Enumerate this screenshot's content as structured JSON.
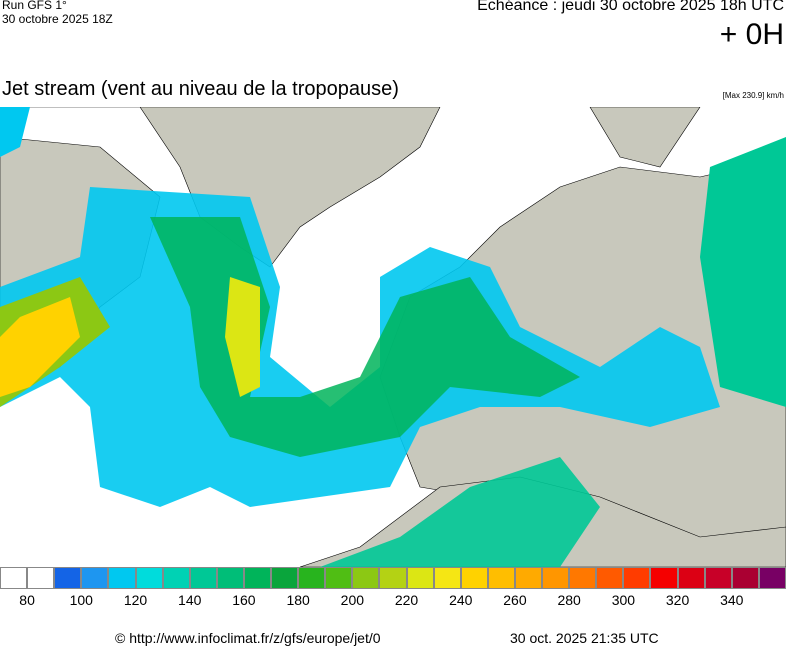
{
  "header": {
    "run": "Run GFS 1°",
    "date": "30 octobre 2025 18Z",
    "echeance": "Echéance : jeudi 30 octobre 2025 18h UTC",
    "offset": "+ 0H"
  },
  "title": "Jet stream (vent au niveau de la tropopause)",
  "max": "[Max 230.9] km/h",
  "legend": {
    "colors": [
      "#ffffff",
      "#ffffff",
      "#1464e6",
      "#1e96f0",
      "#00c8f0",
      "#00dcdc",
      "#00d2b4",
      "#00c896",
      "#00be78",
      "#00b45a",
      "#0aa53c",
      "#28b41e",
      "#50be14",
      "#8cc814",
      "#b4d214",
      "#dce614",
      "#f5e614",
      "#ffd200",
      "#ffbe00",
      "#ffaa00",
      "#ff9600",
      "#ff7800",
      "#ff5a00",
      "#ff3c00",
      "#f50000",
      "#dc0014",
      "#c80028",
      "#aa0032",
      "#780064"
    ],
    "ticks": [
      80,
      100,
      120,
      140,
      160,
      180,
      200,
      220,
      240,
      260,
      280,
      300,
      320,
      340
    ]
  },
  "footer": {
    "url": "© http://www.infoclimat.fr/z/gfs/europe/jet/0",
    "time": "30 oct. 2025 21:35 UTC"
  }
}
